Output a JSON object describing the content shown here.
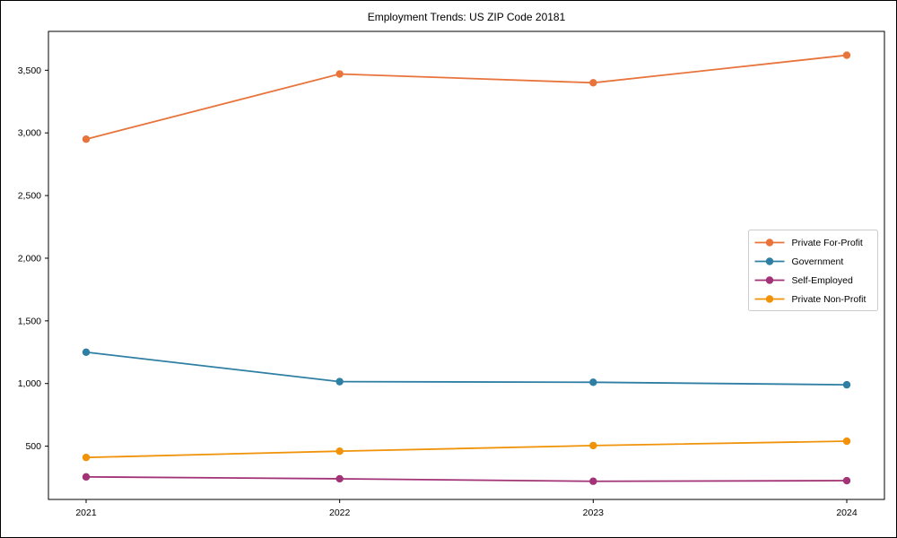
{
  "figure": {
    "title": "Employment Trends: US ZIP Code 20181"
  },
  "chart_data": {
    "type": "line",
    "title": "Employment Trends: US ZIP Code 20181",
    "xlabel": "",
    "ylabel": "",
    "x": [
      2021,
      2022,
      2023,
      2024
    ],
    "xtick_labels": [
      "2021",
      "2022",
      "2023",
      "2024"
    ],
    "yticks": [
      500,
      1000,
      1500,
      2000,
      2500,
      3000,
      3500
    ],
    "ytick_labels": [
      "500",
      "1,000",
      "1,500",
      "2,000",
      "2,500",
      "3,000",
      "3,500"
    ],
    "ylim": [
      75,
      3810
    ],
    "grid": false,
    "legend_position": "center-right",
    "marker": "circle",
    "series": [
      {
        "name": "Private For-Profit",
        "color": "#e8743b",
        "values": [
          2950,
          3470,
          3400,
          3620
        ]
      },
      {
        "name": "Government",
        "color": "#2e7fa3",
        "values": [
          1250,
          1015,
          1010,
          990
        ]
      },
      {
        "name": "Self-Employed",
        "color": "#a23377",
        "values": [
          255,
          240,
          220,
          225
        ]
      },
      {
        "name": "Private Non-Profit",
        "color": "#f0930a",
        "values": [
          410,
          460,
          505,
          540
        ]
      }
    ]
  }
}
